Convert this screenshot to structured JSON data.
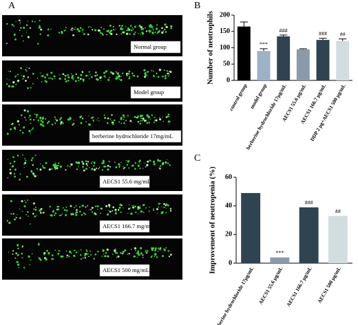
{
  "panels": [
    "A",
    "B",
    "C"
  ],
  "images": [
    "Normal group",
    "Model group",
    "berberine hydrochloride 17mg/mL",
    "AECS1 55.6 mg/mL",
    "AECS1 166.7 mg/mL",
    "AECS1 500 mg/mL"
  ],
  "chart_data": [
    {
      "type": "bar",
      "y_label": "Number of neutrophils",
      "categories": [
        "control group",
        "model group",
        "berberine hydrochloride 17μg/mL",
        "AECS1 55.6 μg/mL",
        "AECS1 166.7 μg/mL",
        "DDP 2 μg+AECS1 500 μg/mL"
      ],
      "values": [
        165,
        90,
        135,
        95,
        124,
        121
      ],
      "errors": [
        14,
        7,
        4,
        2,
        5,
        6
      ],
      "annotations": [
        null,
        "***",
        "###",
        null,
        "###",
        "##"
      ],
      "colors": [
        "#000000",
        "#9fb1c6",
        "#2f4350",
        "#8a9aa8",
        "#2f4350",
        "#d2dde0"
      ],
      "ylim": [
        0,
        200
      ],
      "yticks": [
        0,
        50,
        100,
        150,
        200
      ]
    },
    {
      "type": "bar",
      "y_label": "Improvement of neutropenia (%)",
      "categories": [
        "berberine hydrochloride 17μg/mL",
        "AECS1 55.6 μg/mL",
        "AECS1 166.7 μg/mL",
        "AECS1 500 μg/mL"
      ],
      "values": [
        49,
        4,
        39,
        33
      ],
      "annotations": [
        null,
        "***",
        "###",
        "##"
      ],
      "colors": [
        "#2f4350",
        "#8a9aa8",
        "#2f4350",
        "#d2dde0"
      ],
      "ylim": [
        0,
        60
      ],
      "yticks": [
        0,
        20,
        40,
        60
      ]
    }
  ]
}
